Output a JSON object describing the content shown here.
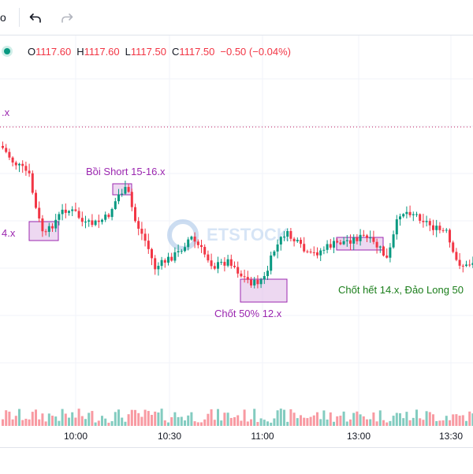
{
  "toolbar": {
    "cut_text": "o",
    "undo_icon": "undo-arrow-icon",
    "redo_icon": "redo-arrow-icon"
  },
  "legend": {
    "status_color": "#089981",
    "open_label": "O",
    "open_value": "1117.60",
    "high_label": "H",
    "high_value": "1117.60",
    "low_label": "L",
    "low_value": "1117.50",
    "close_label": "C",
    "close_value": "1117.50",
    "change": "−0.50 (−0.04%)"
  },
  "annotations": {
    "left_top": ".x",
    "left_mid": "4.x",
    "short": "Bồi Short 15-16.x",
    "take_50": "Chốt 50% 12.x",
    "take_all": "Chốt hết 14.x, Đảo Long 50"
  },
  "watermark": "ETSTOCK",
  "time_axis": {
    "labels": [
      "10:00",
      "10:30",
      "11:00",
      "13:00",
      "13:30"
    ]
  },
  "colors": {
    "up": "#089981",
    "down": "#f23645",
    "annotation_purple": "#9c27b0",
    "annotation_green": "#1b7e1b"
  }
}
